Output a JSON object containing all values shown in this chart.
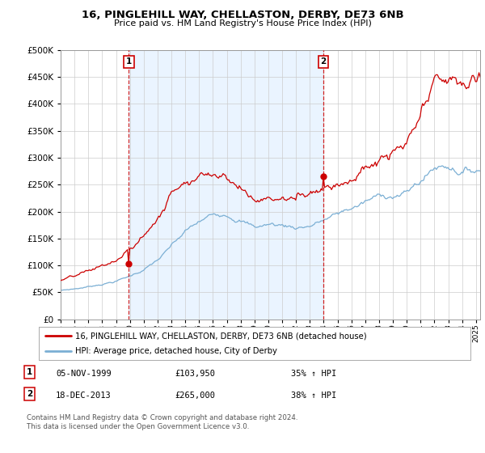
{
  "title": "16, PINGLEHILL WAY, CHELLASTON, DERBY, DE73 6NB",
  "subtitle": "Price paid vs. HM Land Registry's House Price Index (HPI)",
  "legend_line1": "16, PINGLEHILL WAY, CHELLASTON, DERBY, DE73 6NB (detached house)",
  "legend_line2": "HPI: Average price, detached house, City of Derby",
  "annotation1_date": "05-NOV-1999",
  "annotation1_price": "£103,950",
  "annotation1_hpi": "35% ↑ HPI",
  "annotation2_date": "18-DEC-2013",
  "annotation2_price": "£265,000",
  "annotation2_hpi": "38% ↑ HPI",
  "footer": "Contains HM Land Registry data © Crown copyright and database right 2024.\nThis data is licensed under the Open Government Licence v3.0.",
  "sale1_year": 1999.92,
  "sale1_value": 103950,
  "sale2_year": 2013.96,
  "sale2_value": 265000,
  "price_line_color": "#cc0000",
  "hpi_line_color": "#7bafd4",
  "shade_color": "#ddeeff",
  "background_color": "#ffffff",
  "grid_color": "#cccccc",
  "ylim": [
    0,
    500000
  ],
  "xlim_left": 1995.0,
  "xlim_right": 2025.3
}
